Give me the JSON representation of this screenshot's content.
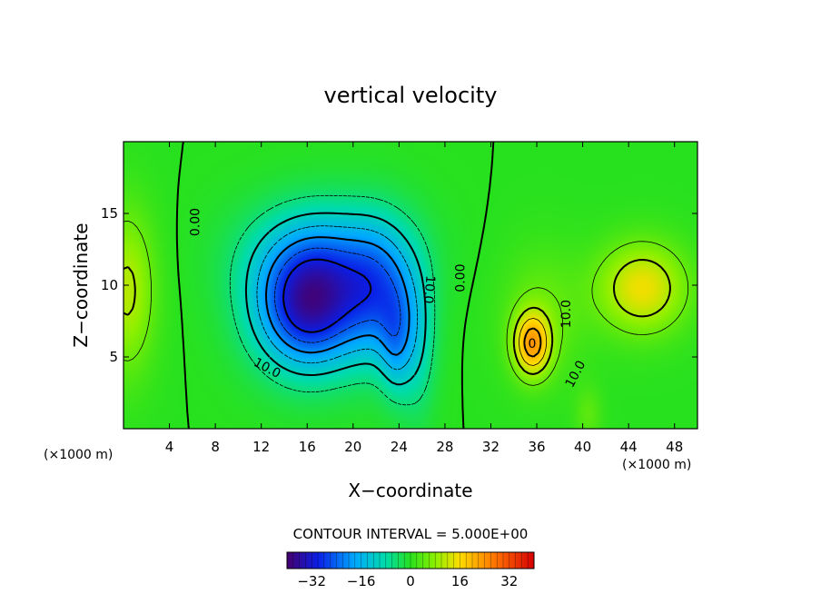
{
  "chart_data": {
    "type": "heatmap",
    "title": "vertical velocity",
    "xlabel": "X−coordinate",
    "ylabel": "Z−coordinate",
    "x_unit_left": "(×1000 m)",
    "x_unit_right": "(×1000 m)",
    "xlim": [
      0,
      50
    ],
    "ylim": [
      0,
      20
    ],
    "x_ticks": [
      4,
      8,
      12,
      16,
      20,
      24,
      28,
      32,
      36,
      40,
      44,
      48
    ],
    "x_tick_labels": [
      "4",
      "8",
      "12",
      "16",
      "20",
      "24",
      "28",
      "32",
      "36",
      "40",
      "44",
      "48"
    ],
    "y_ticks": [
      5,
      10,
      15
    ],
    "y_tick_labels": [
      "5",
      "10",
      "15"
    ],
    "contour_interval_text": "CONTOUR INTERVAL = 5.000E+00",
    "colorbar": {
      "range": [
        -40,
        40
      ],
      "ticks": [
        -32,
        -16,
        0,
        16,
        32
      ],
      "tick_labels": [
        "−32",
        "−16",
        "0",
        "16",
        "32"
      ]
    },
    "contour_labels": [
      {
        "text": "0.00",
        "x": 6.3,
        "z": 14.4,
        "rotate": -90
      },
      {
        "text": "10.0",
        "x": 12.5,
        "z": 4.2,
        "rotate": 28
      },
      {
        "text": "10.0",
        "x": 26.6,
        "z": 9.7,
        "rotate": 95
      },
      {
        "text": "0.00",
        "x": 29.4,
        "z": 10.5,
        "rotate": -90
      },
      {
        "text": "10.0",
        "x": 38.6,
        "z": 8.0,
        "rotate": -90
      },
      {
        "text": "10.0",
        "x": 39.4,
        "z": 3.8,
        "rotate": -62
      },
      {
        "text": "0",
        "x": 35.6,
        "z": 5.9,
        "rotate": 0
      }
    ],
    "field_features": [
      {
        "name": "updraft",
        "x": 16.2,
        "z": 8.3,
        "value": -32,
        "sx": 4.6,
        "sz": 4.2
      },
      {
        "name": "updraft",
        "x": 22.4,
        "z": 9.3,
        "value": -17,
        "sx": 3.1,
        "sz": 4.6
      },
      {
        "name": "updraft",
        "x": 17.5,
        "z": 12.0,
        "value": -14,
        "sx": 6.5,
        "sz": 3.8
      },
      {
        "name": "updraft",
        "x": 23.7,
        "z": 6.0,
        "value": -11,
        "sx": 1.4,
        "sz": 3.6
      },
      {
        "name": "updraft",
        "x": 25.6,
        "z": 6.0,
        "value": -8,
        "sx": 1.6,
        "sz": 5.0
      },
      {
        "name": "downdraft",
        "x": 35.6,
        "z": 5.9,
        "value": 20,
        "sx": 1.6,
        "sz": 2.2
      },
      {
        "name": "downdraft",
        "x": 45.2,
        "z": 9.8,
        "value": 15,
        "sx": 3.8,
        "sz": 3.1
      },
      {
        "name": "downdraft",
        "x": 0.3,
        "z": 9.6,
        "value": 11,
        "sx": 2.4,
        "sz": 5.5
      },
      {
        "name": "downdraft",
        "x": 36.5,
        "z": 8.0,
        "value": 5,
        "sx": 3.6,
        "sz": 4.5
      },
      {
        "name": "downdraft",
        "x": 40.5,
        "z": 1.0,
        "value": 4,
        "sx": 1.2,
        "sz": 2.0
      }
    ]
  }
}
